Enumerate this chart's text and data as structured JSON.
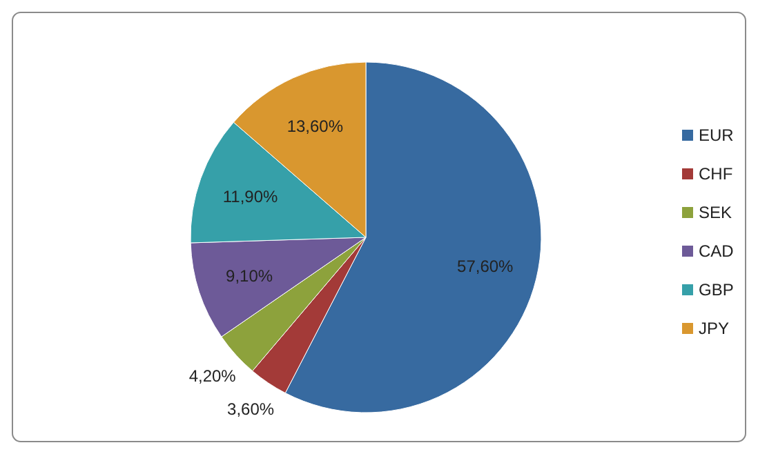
{
  "chart_data": {
    "type": "pie",
    "categories": [
      "EUR",
      "CHF",
      "SEK",
      "CAD",
      "GBP",
      "JPY"
    ],
    "values": [
      57.6,
      3.6,
      4.2,
      9.1,
      11.9,
      13.6
    ],
    "colors": [
      "#376aa0",
      "#a33a38",
      "#8da23c",
      "#6d5a98",
      "#36a0a9",
      "#d9972f"
    ],
    "value_labels": [
      "57,60%",
      "3,60%",
      "4,20%",
      "9,10%",
      "11,90%",
      "13,60%"
    ],
    "legend": "right"
  }
}
